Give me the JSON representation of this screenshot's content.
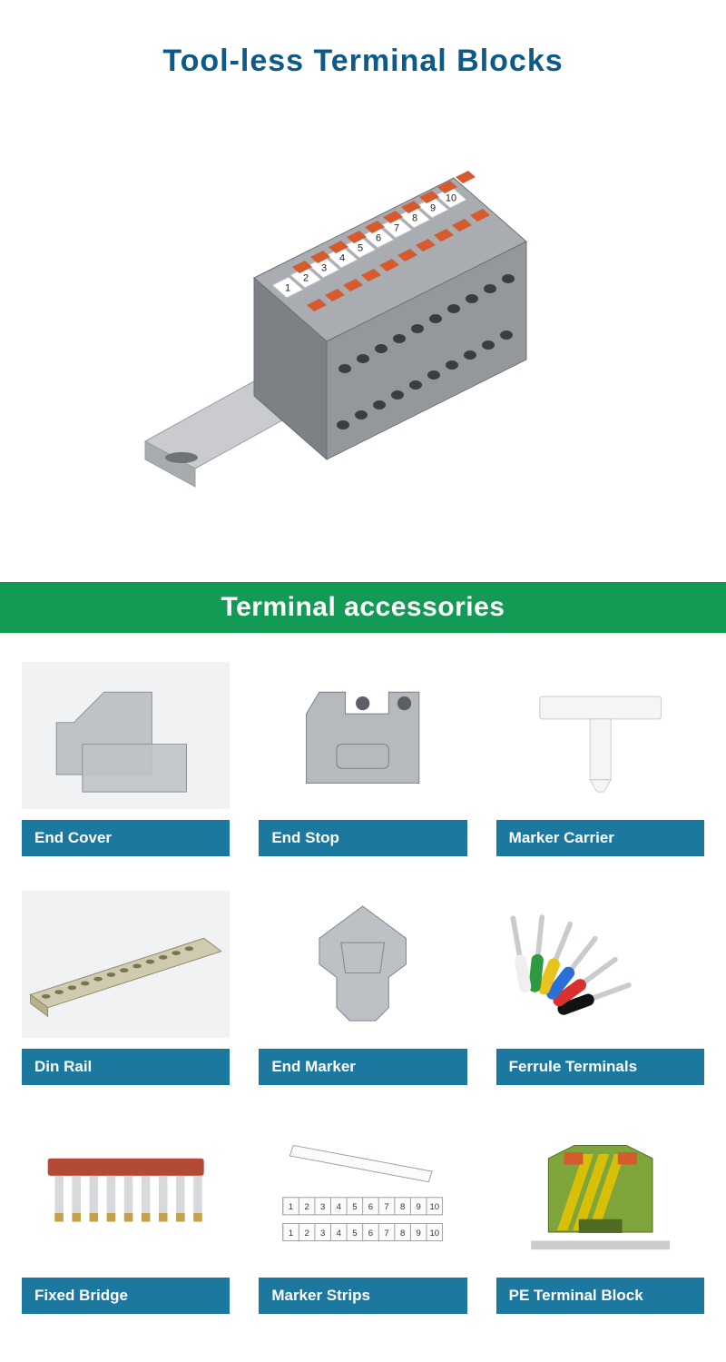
{
  "title": {
    "text": "Tool-less Terminal Blocks",
    "color": "#0b5a8a",
    "fontsize": 34
  },
  "section_banner": {
    "text": "Terminal accessories",
    "bg": "#139a54",
    "color": "#ffffff",
    "fontsize": 30,
    "height": 56
  },
  "caption_style": {
    "bg": "#1d78a0",
    "color": "#ffffff",
    "fontsize": 17
  },
  "thumb_bg_alt": "#f1f2f3",
  "hero": {
    "rail_color": "#c9cbce",
    "rail_edge": "#9a9da1",
    "block_color": "#a9acb0",
    "block_dark": "#7d8084",
    "lever_color": "#d65a2d",
    "label_bg": "#ffffff",
    "label_text": "#222222",
    "numbers": [
      "1",
      "2",
      "3",
      "4",
      "5",
      "6",
      "7",
      "8",
      "9",
      "10"
    ]
  },
  "items": [
    {
      "label": "End Cover",
      "kind": "end_cover"
    },
    {
      "label": "End Stop",
      "kind": "end_stop"
    },
    {
      "label": "Marker Carrier",
      "kind": "marker_carrier"
    },
    {
      "label": "Din Rail",
      "kind": "din_rail"
    },
    {
      "label": "End Marker",
      "kind": "end_marker"
    },
    {
      "label": "Ferrule Terminals",
      "kind": "ferrules"
    },
    {
      "label": "Fixed Bridge",
      "kind": "fixed_bridge"
    },
    {
      "label": "Marker Strips",
      "kind": "marker_strips"
    },
    {
      "label": "PE Terminal Block",
      "kind": "pe_block"
    }
  ],
  "illus": {
    "end_cover": {
      "bg": "#eceef0",
      "fill": "#bfc2c6",
      "stroke": "#8c8f93"
    },
    "end_stop": {
      "bg": "#ffffff",
      "fill": "#b6b9bd",
      "stroke": "#7b7e82"
    },
    "marker_carrier": {
      "bg": "#ffffff",
      "fill": "#f4f5f6",
      "stroke": "#c9ccd0"
    },
    "din_rail": {
      "bg": "#f3f4f5",
      "fill": "#cfcab0",
      "fill2": "#b7b08e",
      "stroke": "#8e8867"
    },
    "end_marker": {
      "bg": "#ffffff",
      "fill": "#bdc0c4",
      "stroke": "#7f8286"
    },
    "ferrules": {
      "bg": "#ffffff",
      "metal": "#c9cbce",
      "tips": [
        "#111111",
        "#d9322e",
        "#2a6fd6",
        "#e8c31e",
        "#2e9a3f",
        "#efefef"
      ]
    },
    "fixed_bridge": {
      "bg": "#ffffff",
      "bar": "#b24a36",
      "pin": "#d8d9dc",
      "pin_tip": "#c4a24a"
    },
    "marker_strips": {
      "bg": "#ffffff",
      "strip": "#fbfbfb",
      "line": "#9b9ea2",
      "nums": [
        "1",
        "2",
        "3",
        "4",
        "5",
        "6",
        "7",
        "8",
        "9",
        "10"
      ]
    },
    "pe_block": {
      "bg": "#ffffff",
      "body": "#7fa53a",
      "stripe": "#e8c400",
      "dark": "#4f6b22",
      "rail": "#c9cbce"
    }
  }
}
